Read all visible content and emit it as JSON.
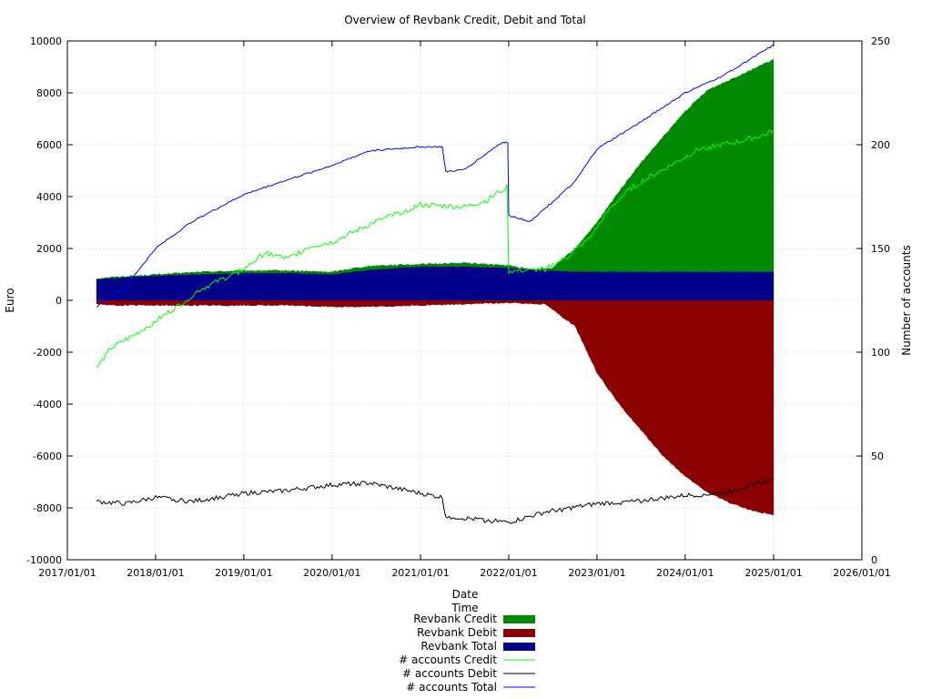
{
  "chart_data": {
    "type": "area",
    "title": "Overview of Revbank Credit, Debit and Total",
    "xlabel": "Date",
    "xlabel2": "Time",
    "ylabel": "Euro",
    "y2label": "Number of accounts",
    "xlim": [
      "2017/01/01",
      "2026/01/01"
    ],
    "ylim": [
      -10000,
      10000
    ],
    "y2lim": [
      0,
      250
    ],
    "x_ticks": [
      "2017/01/01",
      "2018/01/01",
      "2019/01/01",
      "2020/01/01",
      "2021/01/01",
      "2022/01/01",
      "2023/01/01",
      "2024/01/01",
      "2025/01/01",
      "2026/01/01"
    ],
    "y_ticks": [
      10000,
      8000,
      6000,
      4000,
      2000,
      0,
      -2000,
      -4000,
      -6000,
      -8000,
      -10000
    ],
    "y2_ticks": [
      250,
      200,
      150,
      100,
      50,
      0
    ],
    "grid": true,
    "legend_position": "bottom-center",
    "series": [
      {
        "name": "Revbank Credit",
        "axis": "y",
        "kind": "filled",
        "color": "#008800",
        "x": [
          "2017/05/01",
          "2017/07/01",
          "2018/01/01",
          "2018/07/01",
          "2019/01/01",
          "2019/07/01",
          "2020/01/01",
          "2020/04/01",
          "2020/07/01",
          "2021/01/01",
          "2021/07/01",
          "2022/01/01",
          "2022/04/01",
          "2022/07/01",
          "2022/10/01",
          "2023/01/01",
          "2023/04/01",
          "2023/07/01",
          "2023/10/01",
          "2024/01/01",
          "2024/04/01",
          "2024/07/01",
          "2024/10/01",
          "2025/01/01"
        ],
        "values": [
          850,
          900,
          1000,
          1100,
          1150,
          1150,
          1100,
          1250,
          1350,
          1400,
          1450,
          1350,
          1200,
          1250,
          2000,
          3000,
          4200,
          5300,
          6300,
          7300,
          8100,
          8500,
          8900,
          9300
        ]
      },
      {
        "name": "Revbank Debit",
        "axis": "y",
        "kind": "filled",
        "color": "#8b0000",
        "x": [
          "2017/05/01",
          "2017/07/01",
          "2018/01/01",
          "2018/07/01",
          "2019/01/01",
          "2019/07/01",
          "2020/01/01",
          "2020/07/01",
          "2021/01/01",
          "2021/07/01",
          "2022/01/01",
          "2022/06/01",
          "2022/10/01",
          "2023/01/01",
          "2023/04/01",
          "2023/07/01",
          "2023/10/01",
          "2024/01/01",
          "2024/04/01",
          "2024/07/01",
          "2024/10/01",
          "2025/01/01"
        ],
        "values": [
          -150,
          -200,
          -200,
          -200,
          -200,
          -200,
          -250,
          -250,
          -200,
          -150,
          -100,
          -150,
          -1000,
          -2800,
          -4000,
          -5000,
          -6000,
          -6800,
          -7400,
          -7800,
          -8100,
          -8300
        ]
      },
      {
        "name": "Revbank Total",
        "axis": "y",
        "kind": "filled",
        "color": "#00008b",
        "x": [
          "2017/05/01",
          "2017/07/01",
          "2018/01/01",
          "2018/07/01",
          "2019/01/01",
          "2019/07/01",
          "2020/01/01",
          "2020/07/01",
          "2021/01/01",
          "2021/07/01",
          "2022/01/01",
          "2022/06/01",
          "2022/10/01",
          "2023/01/01",
          "2024/01/01",
          "2025/01/01"
        ],
        "values": [
          800,
          850,
          950,
          1000,
          1050,
          1050,
          1000,
          1200,
          1300,
          1300,
          1250,
          1150,
          1100,
          1100,
          1100,
          1100
        ]
      },
      {
        "name": "# accounts Credit",
        "axis": "y2",
        "kind": "line",
        "color": "#00ff00",
        "x": [
          "2017/05/01",
          "2017/07/01",
          "2017/10/01",
          "2018/01/01",
          "2018/04/01",
          "2018/07/01",
          "2018/10/01",
          "2019/01/01",
          "2019/04/01",
          "2019/07/01",
          "2019/10/01",
          "2020/01/01",
          "2020/04/01",
          "2020/07/01",
          "2020/10/01",
          "2021/01/01",
          "2021/07/01",
          "2021/10/01",
          "2021/12/25",
          "2022/01/01",
          "2022/06/01",
          "2022/09/01",
          "2022/12/01",
          "2023/03/01",
          "2023/06/01",
          "2023/09/01",
          "2023/12/01",
          "2024/03/01",
          "2024/06/01",
          "2024/09/01",
          "2024/12/01",
          "2025/01/01"
        ],
        "values": [
          92,
          102,
          108,
          115,
          122,
          130,
          135,
          140,
          148,
          145,
          151,
          153,
          158,
          163,
          167,
          171,
          170,
          173,
          180,
          139,
          140,
          146,
          155,
          170,
          180,
          186,
          192,
          198,
          200,
          202,
          205,
          207
        ]
      },
      {
        "name": "# accounts Debit",
        "axis": "y2",
        "kind": "line",
        "color": "#000000",
        "x": [
          "2017/05/01",
          "2017/09/01",
          "2018/01/01",
          "2018/06/01",
          "2019/01/01",
          "2019/06/01",
          "2020/01/01",
          "2020/06/01",
          "2021/01/01",
          "2021/04/01",
          "2021/04/15",
          "2021/07/01",
          "2022/01/01",
          "2022/06/01",
          "2023/01/01",
          "2023/06/01",
          "2024/01/01",
          "2024/06/01",
          "2025/01/01"
        ],
        "values": [
          28,
          27,
          30,
          28,
          32,
          33,
          36,
          37,
          32,
          30,
          21,
          20,
          18,
          23,
          27,
          28,
          31,
          32,
          39
        ]
      },
      {
        "name": "# accounts Total",
        "axis": "y2",
        "kind": "line",
        "color": "#0000ff",
        "x": [
          "2017/05/01",
          "2017/09/01",
          "2018/01/01",
          "2018/06/01",
          "2019/01/01",
          "2019/06/01",
          "2020/01/01",
          "2020/06/01",
          "2021/01/01",
          "2021/04/01",
          "2021/04/15",
          "2021/07/01",
          "2021/12/01",
          "2021/12/28",
          "2022/01/01",
          "2022/04/01",
          "2022/10/01",
          "2023/01/01",
          "2023/07/01",
          "2024/01/01",
          "2024/06/01",
          "2025/01/01"
        ],
        "values": [
          122,
          132,
          150,
          163,
          176,
          182,
          190,
          197,
          199,
          199,
          187,
          188,
          201,
          201,
          166,
          163,
          182,
          198,
          211,
          225,
          233,
          248
        ]
      }
    ]
  }
}
